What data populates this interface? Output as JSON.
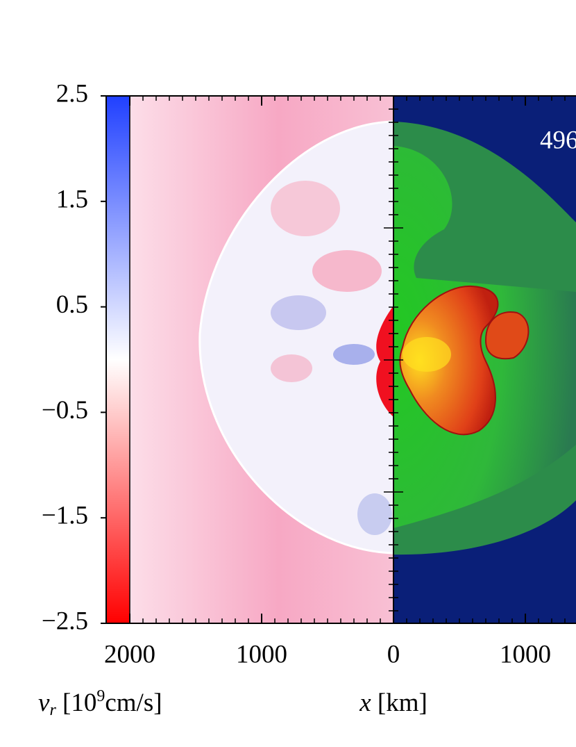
{
  "chart_data": {
    "type": "image",
    "annotation": "496",
    "colorbar_label": {
      "symbol": "v",
      "subscript": "r",
      "before": " [10",
      "superscript": "9",
      "after": "cm/s]"
    },
    "xlabel": {
      "symbol": "x",
      "rest": " [km]"
    },
    "colorbar_lim": [
      -2.5,
      2.5
    ],
    "colorbar_ticks": [
      2.5,
      1.5,
      0.5,
      {
        "value": -0.5,
        "label": "−0.5"
      },
      {
        "value": -1.5,
        "label": "−1.5"
      },
      {
        "value": -2.5,
        "label": "−2.5"
      }
    ],
    "colorbar_colors": [
      "#ff0000",
      "#ffffff",
      "#2040ff"
    ],
    "xlim": [
      -2179,
      1384
    ],
    "xticks": [
      {
        "value": -2000,
        "label": "2000"
      },
      {
        "value": -1000,
        "label": "1000"
      },
      0,
      1000
    ]
  }
}
